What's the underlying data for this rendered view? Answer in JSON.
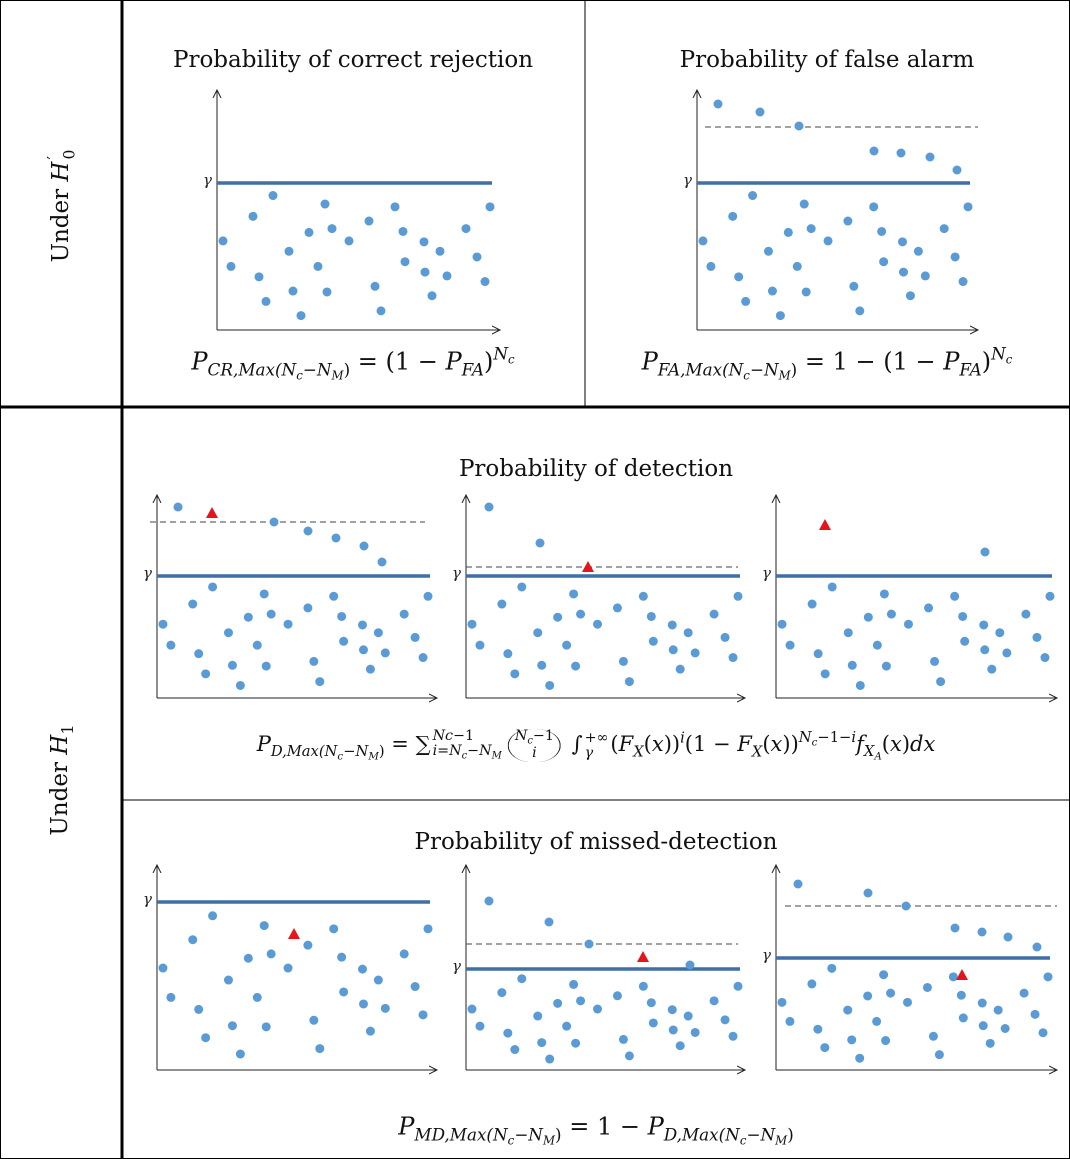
{
  "row_labels": [
    [
      {
        "t": "Under "
      },
      {
        "m": "H"
      },
      {
        "limits": {
          "sup": [
            {
              "t": "′"
            }
          ],
          "sub": [
            {
              "t": "0"
            }
          ]
        }
      }
    ],
    [
      {
        "t": "Under "
      },
      {
        "m": "H"
      },
      {
        "sub": [
          {
            "t": "1"
          }
        ]
      }
    ]
  ],
  "panels": [
    {
      "title": "Probability of correct rejection",
      "formula": [
        {
          "m": "P"
        },
        {
          "sub": [
            {
              "m": "CR,Max(N"
            },
            {
              "sub": [
                {
                  "m": "c"
                }
              ]
            },
            {
              "t": "−"
            },
            {
              "m": "N"
            },
            {
              "sub": [
                {
                  "m": "M"
                }
              ]
            },
            {
              "t": ")"
            }
          ]
        },
        {
          "t": " = (1 − "
        },
        {
          "m": "P"
        },
        {
          "sub": [
            {
              "m": "FA"
            }
          ]
        },
        {
          "t": ")"
        },
        {
          "sup": [
            {
              "m": "N"
            },
            {
              "sub": [
                {
                  "m": "c"
                }
              ]
            }
          ]
        }
      ]
    },
    {
      "title": "Probability of false alarm",
      "formula": [
        {
          "m": "P"
        },
        {
          "sub": [
            {
              "m": "FA,Max(N"
            },
            {
              "sub": [
                {
                  "m": "c"
                }
              ]
            },
            {
              "t": "−"
            },
            {
              "m": "N"
            },
            {
              "sub": [
                {
                  "m": "M"
                }
              ]
            },
            {
              "t": ")"
            }
          ]
        },
        {
          "t": " = 1 − (1 − "
        },
        {
          "m": "P"
        },
        {
          "sub": [
            {
              "m": "FA"
            }
          ]
        },
        {
          "t": ")"
        },
        {
          "sup": [
            {
              "m": "N"
            },
            {
              "sub": [
                {
                  "m": "c"
                }
              ]
            }
          ]
        }
      ]
    },
    {
      "title": "Probability of detection",
      "formula": [
        {
          "m": "P"
        },
        {
          "sub": [
            {
              "m": "D,Max(N"
            },
            {
              "sub": [
                {
                  "m": "c"
                }
              ]
            },
            {
              "t": "−"
            },
            {
              "m": "N"
            },
            {
              "sub": [
                {
                  "m": "M"
                }
              ]
            },
            {
              "t": ")"
            }
          ]
        },
        {
          "t": " = ∑"
        },
        {
          "limits": {
            "sup": [
              {
                "m": "N"
              },
              {
                "sub": [
                  {
                    "m": "c"
                  }
                ]
              },
              {
                "t": "−1"
              }
            ],
            "sub": [
              {
                "m": "i"
              },
              {
                "t": "="
              },
              {
                "m": "N"
              },
              {
                "sub": [
                  {
                    "m": "c"
                  }
                ]
              },
              {
                "t": "−"
              },
              {
                "m": "N"
              },
              {
                "sub": [
                  {
                    "m": "M"
                  }
                ]
              }
            ]
          }
        },
        {
          "binom": {
            "over": [
              {
                "m": "N"
              },
              {
                "sub": [
                  {
                    "m": "c"
                  }
                ]
              },
              {
                "t": "−1"
              }
            ],
            "under": [
              {
                "m": "i"
              }
            ]
          }
        },
        {
          "t": " ∫"
        },
        {
          "limits": {
            "sup": [
              {
                "t": "+∞"
              }
            ],
            "sub": [
              {
                "m": "γ"
              }
            ]
          }
        },
        {
          "t": "("
        },
        {
          "m": "F"
        },
        {
          "sub": [
            {
              "m": "X"
            }
          ]
        },
        {
          "t": "("
        },
        {
          "m": "x"
        },
        {
          "t": "))"
        },
        {
          "sup": [
            {
              "m": "i"
            }
          ]
        },
        {
          "t": "(1 − "
        },
        {
          "m": "F"
        },
        {
          "sub": [
            {
              "m": "X"
            }
          ]
        },
        {
          "t": "("
        },
        {
          "m": "x"
        },
        {
          "t": "))"
        },
        {
          "sup": [
            {
              "m": "N"
            },
            {
              "sub": [
                {
                  "m": "c"
                }
              ]
            },
            {
              "t": "−1−"
            },
            {
              "m": "i"
            }
          ]
        },
        {
          "m": "f"
        },
        {
          "sub": [
            {
              "m": "X"
            },
            {
              "sub": [
                {
                  "m": "A"
                }
              ]
            }
          ]
        },
        {
          "t": "("
        },
        {
          "m": "x"
        },
        {
          "t": ")"
        },
        {
          "m": "dx"
        }
      ]
    },
    {
      "title": "Probability of missed-detection",
      "formula": [
        {
          "m": "P"
        },
        {
          "sub": [
            {
              "m": "MD,Max(N"
            },
            {
              "sub": [
                {
                  "m": "c"
                }
              ]
            },
            {
              "t": "−"
            },
            {
              "m": "N"
            },
            {
              "sub": [
                {
                  "m": "M"
                }
              ]
            },
            {
              "t": ")"
            }
          ]
        },
        {
          "t": " =  1 − "
        },
        {
          "m": "P"
        },
        {
          "sub": [
            {
              "m": "D,Max(N"
            },
            {
              "sub": [
                {
                  "m": "c"
                }
              ]
            },
            {
              "t": "−"
            },
            {
              "m": "N"
            },
            {
              "sub": [
                {
                  "m": "M"
                }
              ]
            },
            {
              "t": ")"
            }
          ]
        }
      ]
    }
  ],
  "charts": [
    {
      "gamma_label": "γ"
    },
    {
      "gamma_label": "γ"
    },
    {
      "gamma_label": "γ"
    },
    {
      "gamma_label": "γ"
    },
    {
      "gamma_label": "γ"
    },
    {
      "gamma_label": "γ"
    },
    {
      "gamma_label": "γ"
    },
    {
      "gamma_label": "γ"
    }
  ]
}
